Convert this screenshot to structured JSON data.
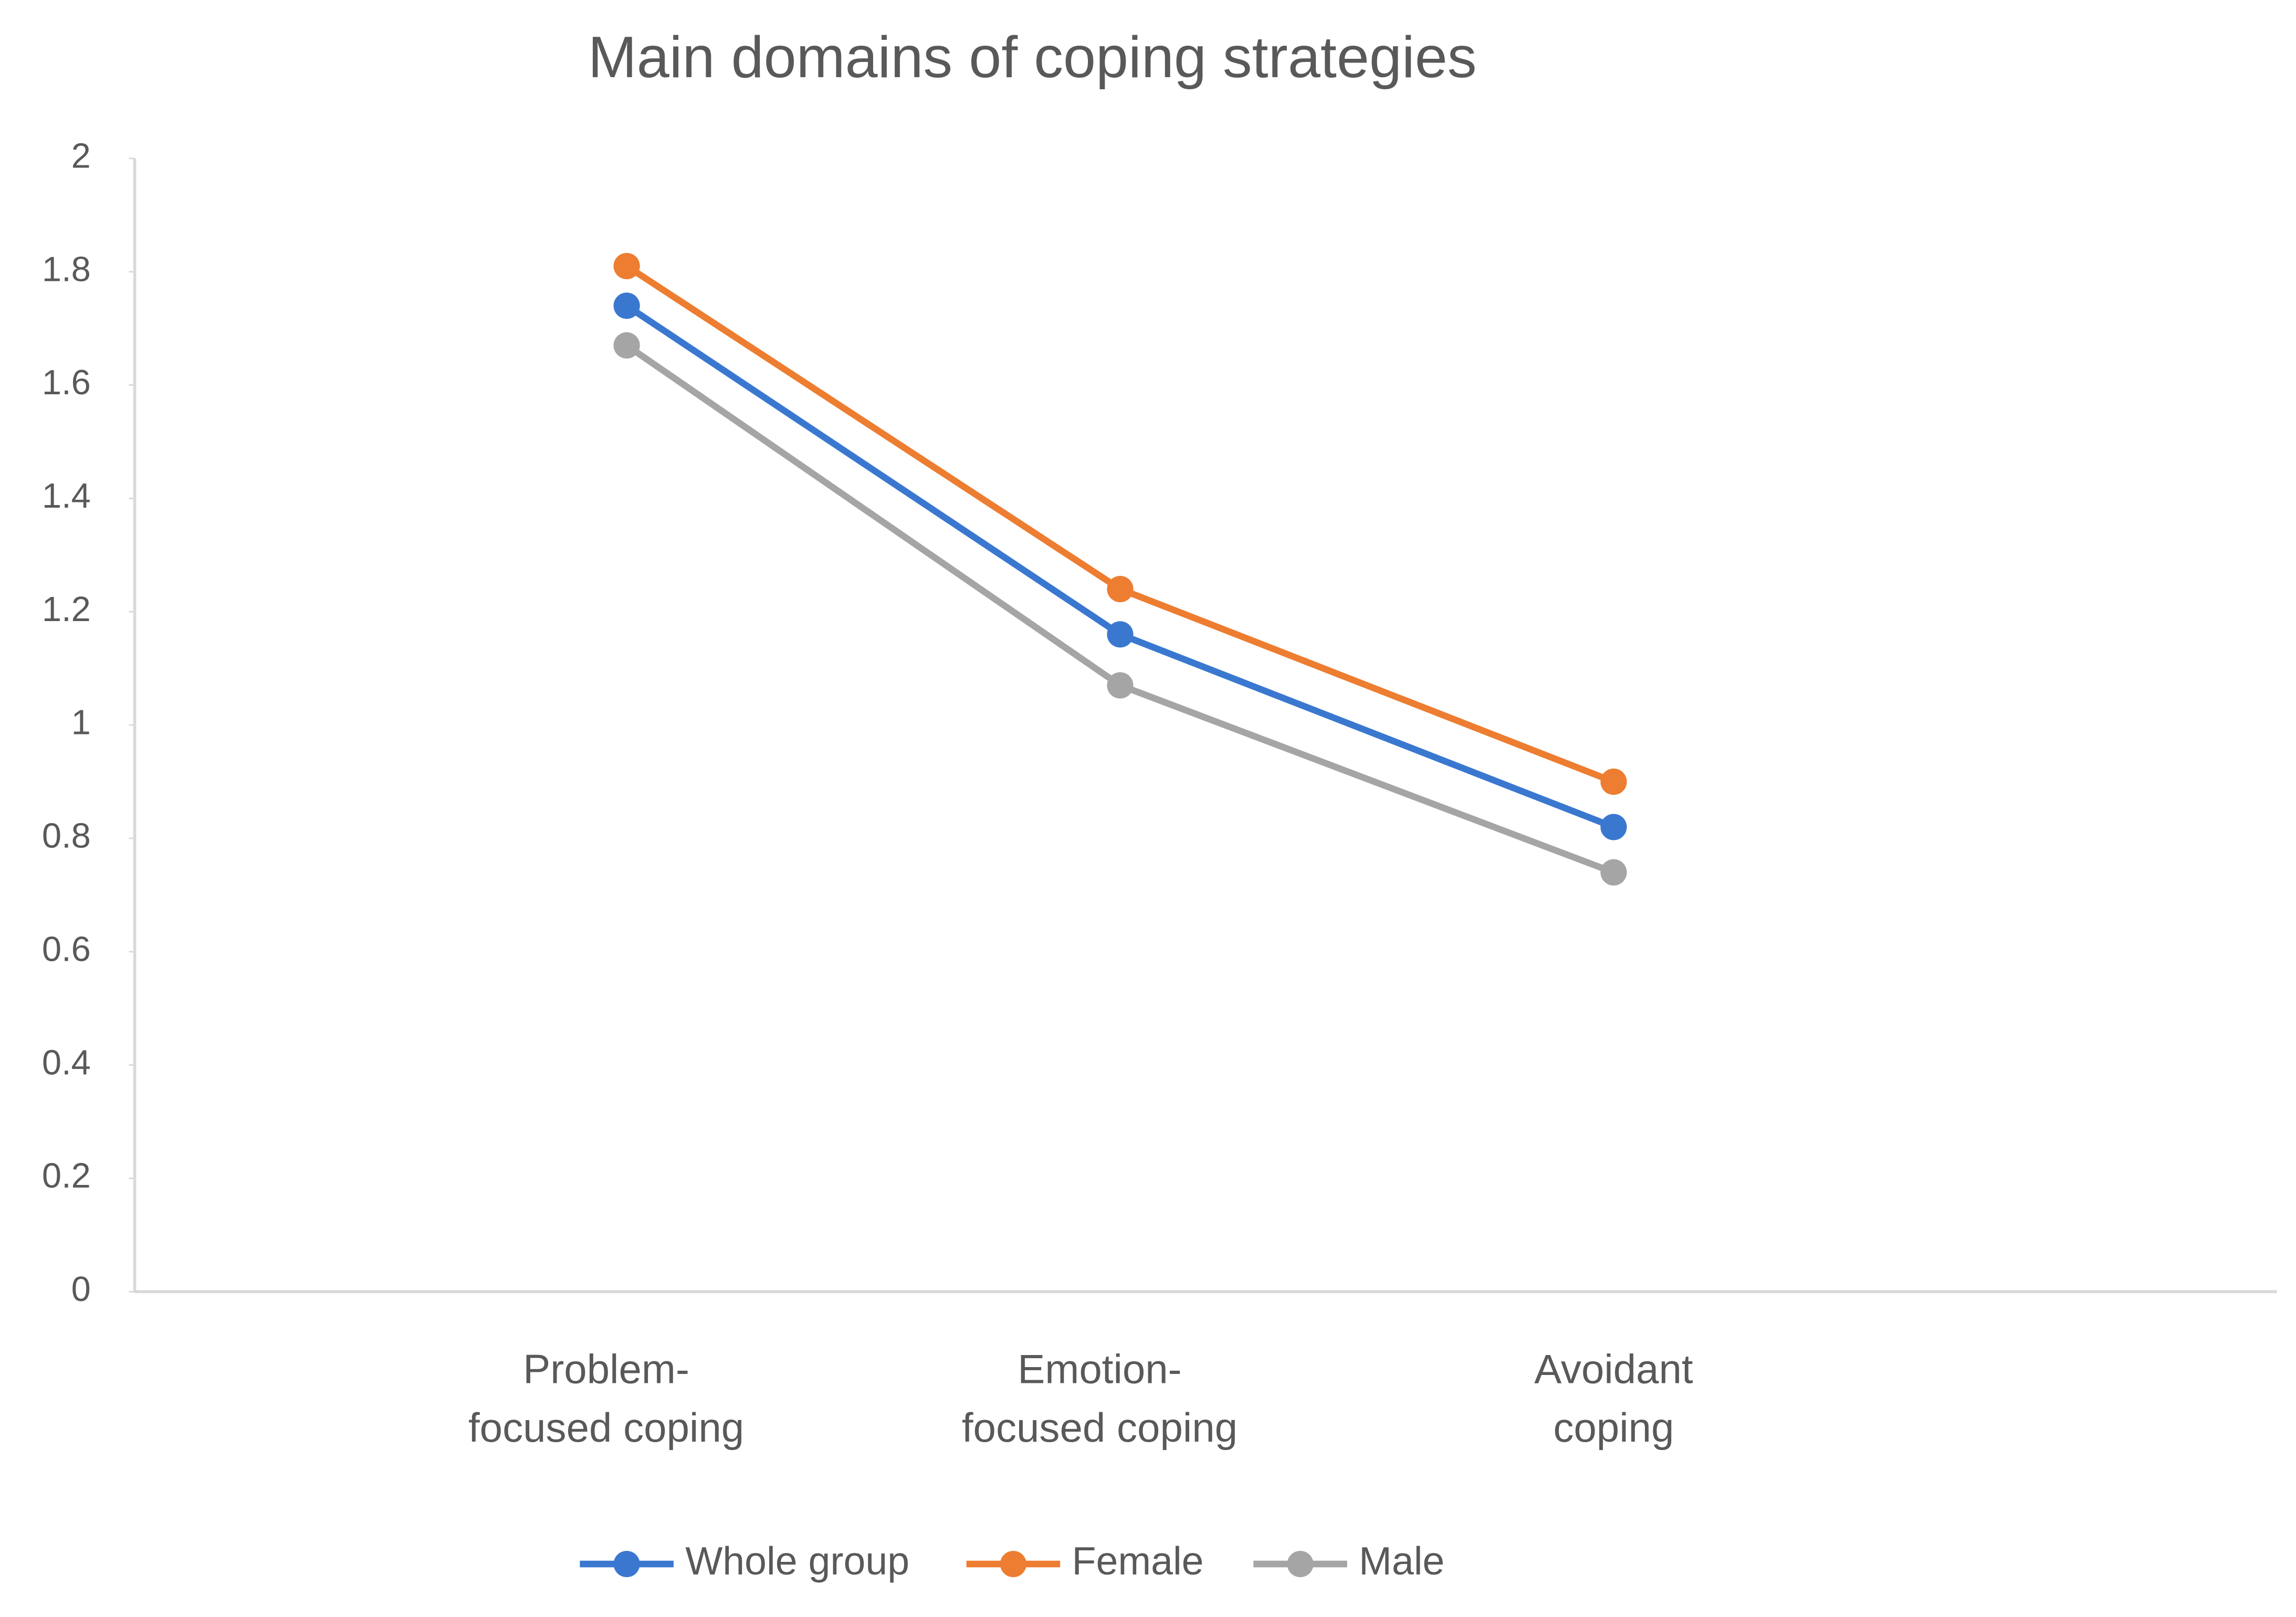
{
  "chart_data": {
    "type": "line",
    "title": "Main domains of coping strategies",
    "categories": [
      [
        "Problem-",
        "focused coping"
      ],
      [
        "Emotion-",
        "focused coping"
      ],
      [
        "Avoidant",
        "coping"
      ]
    ],
    "series": [
      {
        "name": "Whole group",
        "color": "#3a78d0",
        "values": [
          1.74,
          1.16,
          0.82
        ]
      },
      {
        "name": "Female",
        "color": "#ed7d31",
        "values": [
          1.81,
          1.24,
          0.9
        ]
      },
      {
        "name": "Male",
        "color": "#a5a5a5",
        "values": [
          1.67,
          1.07,
          0.74
        ]
      }
    ],
    "ylim": [
      0,
      2
    ],
    "yticks": [
      0,
      0.2,
      0.4,
      0.6,
      0.8,
      1,
      1.2,
      1.4,
      1.6,
      1.8,
      2
    ],
    "grid": false,
    "legend": "bottom"
  }
}
